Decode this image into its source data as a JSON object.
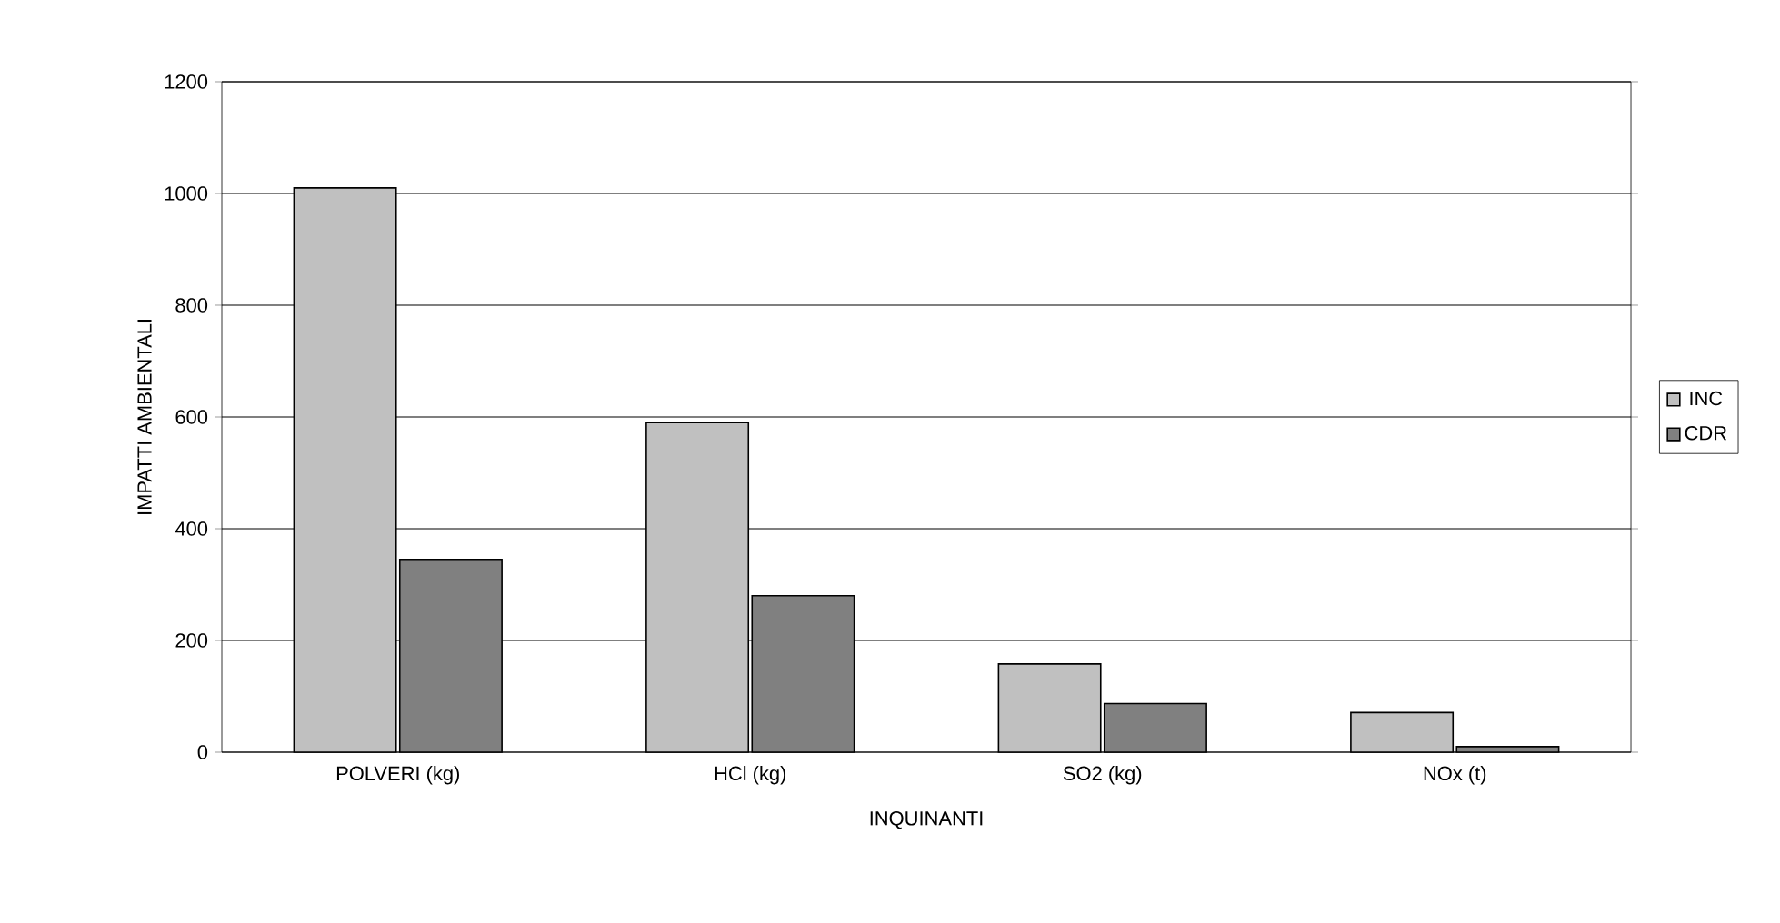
{
  "chart_data": {
    "type": "bar",
    "xlabel": "INQUINANTI",
    "ylabel": "IMPATTI AMBIENTALI",
    "categories": [
      "POLVERI (kg)",
      "HCl (kg)",
      "SO2 (kg)",
      "NOx (t)"
    ],
    "series": [
      {
        "name": "INC",
        "color": "#c0c0c0",
        "values": [
          1010,
          590,
          158,
          71
        ]
      },
      {
        "name": "CDR",
        "color": "#808080",
        "values": [
          345,
          280,
          87,
          10
        ]
      }
    ],
    "ylim": [
      0,
      1200
    ],
    "yticks": [
      0,
      200,
      400,
      600,
      800,
      1000,
      1200
    ],
    "grid": "y",
    "legend": "right"
  }
}
